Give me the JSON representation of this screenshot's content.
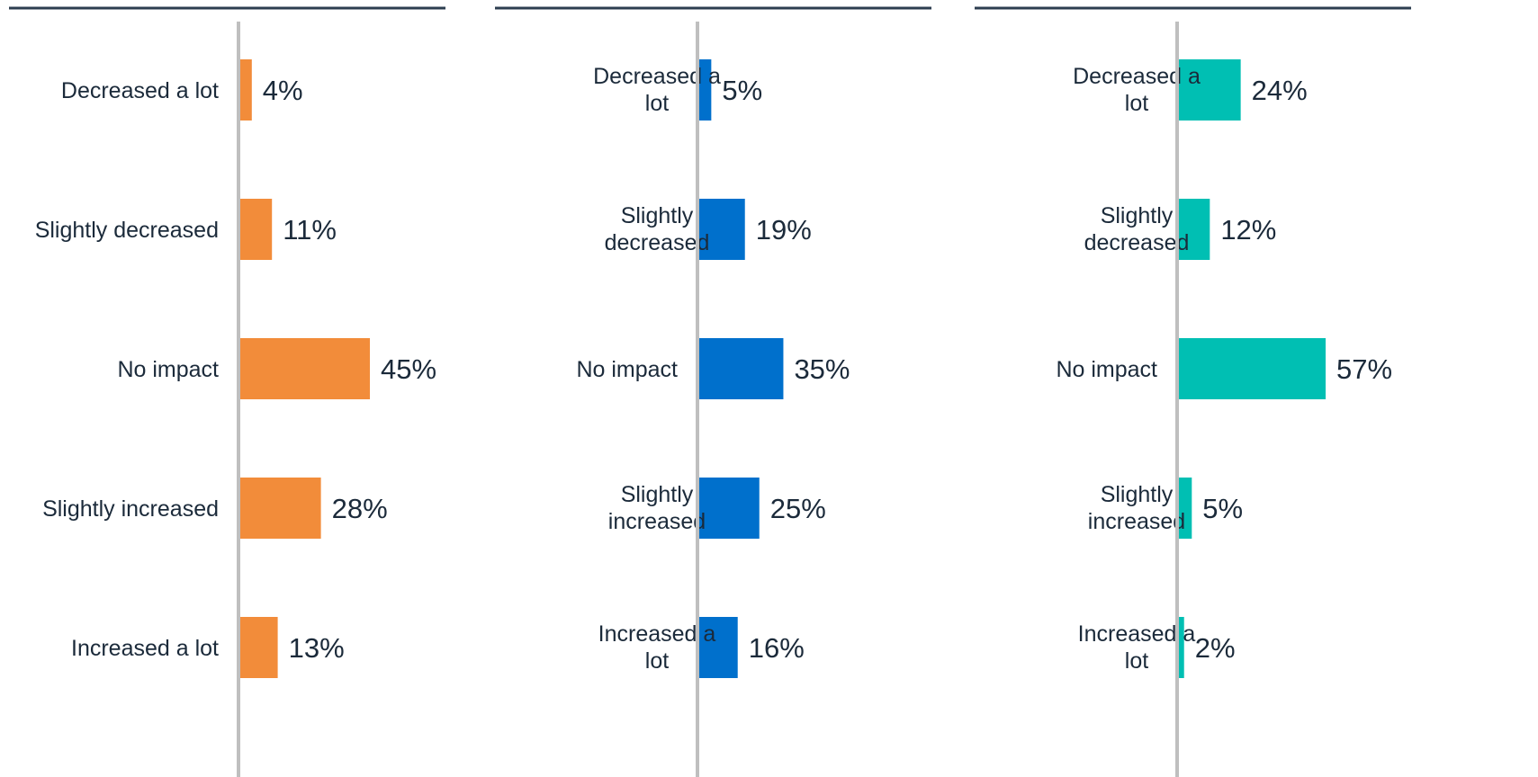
{
  "chart_data": [
    {
      "type": "bar",
      "orientation": "horizontal",
      "categories": [
        "Decreased a lot",
        "Slightly decreased",
        "No impact",
        "Slightly increased",
        "Increased a lot"
      ],
      "values": [
        4,
        11,
        45,
        28,
        13
      ],
      "unit": "%",
      "color": "#f28c3a",
      "xlim": [
        0,
        60
      ],
      "grid": false
    },
    {
      "type": "bar",
      "orientation": "horizontal",
      "categories": [
        "Decreased a lot",
        "Slightly decreased",
        "No impact",
        "Slightly increased",
        "Increased a lot"
      ],
      "values": [
        5,
        19,
        35,
        25,
        16
      ],
      "unit": "%",
      "color": "#0070cc",
      "xlim": [
        0,
        60
      ],
      "grid": false
    },
    {
      "type": "bar",
      "orientation": "horizontal",
      "categories": [
        "Decreased a lot",
        "Slightly decreased",
        "No impact",
        "Slightly increased",
        "Increased a lot"
      ],
      "values": [
        24,
        12,
        57,
        5,
        2
      ],
      "unit": "%",
      "color": "#00bfb3",
      "xlim": [
        0,
        60
      ],
      "grid": false
    }
  ],
  "colors": {
    "text": "#1b2a3a",
    "axis": "#bfbfbf",
    "header_rule": "#2d3e50"
  }
}
